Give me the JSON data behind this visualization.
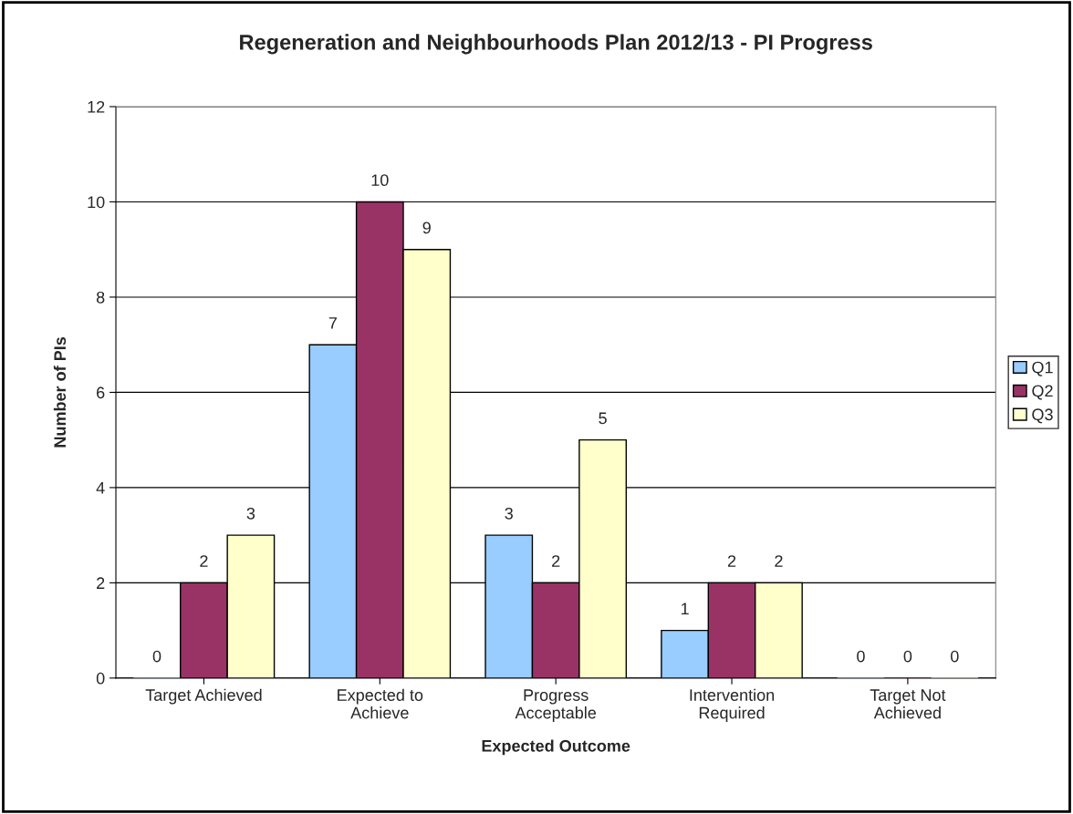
{
  "chart_data": {
    "type": "bar",
    "title": "Regeneration and Neighbourhoods Plan 2012/13 - PI Progress",
    "xlabel": "Expected Outcome",
    "ylabel": "Number of PIs",
    "categories": [
      "Target Achieved",
      "Expected to\nAchieve",
      "Progress\nAcceptable",
      "Intervention\nRequired",
      "Target Not\nAchieved"
    ],
    "series": [
      {
        "name": "Q1",
        "color": "#99ccff",
        "values": [
          0,
          7,
          3,
          1,
          0
        ]
      },
      {
        "name": "Q2",
        "color": "#993366",
        "values": [
          2,
          10,
          2,
          2,
          0
        ]
      },
      {
        "name": "Q3",
        "color": "#ffffcc",
        "values": [
          3,
          9,
          5,
          2,
          0
        ]
      }
    ],
    "ylim": [
      0,
      12
    ],
    "yticks": [
      0,
      2,
      4,
      6,
      8,
      10,
      12
    ],
    "grid": "y",
    "legend": "right",
    "data_labels": true
  }
}
